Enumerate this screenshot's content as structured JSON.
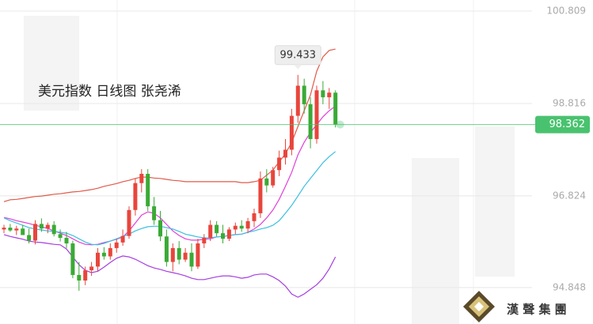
{
  "chart_data": {
    "type": "candlestick",
    "title": "美元指数 日线图 张尧浠",
    "ylim": [
      94.063,
      101.047
    ],
    "yticks": [
      94.848,
      96.824,
      98.816,
      100.809
    ],
    "grid": true,
    "up_color": "#e8453c",
    "down_color": "#3aaa35",
    "last_price_color": "#49c26f",
    "open": [
      96.1,
      96.14,
      96.08,
      96.12,
      95.98,
      95.86,
      96.22,
      96.12,
      96.2,
      96.0,
      95.92,
      95.8,
      95.12,
      95.0,
      95.22,
      95.3,
      95.6,
      95.52,
      95.7,
      95.82,
      95.96,
      96.52,
      97.1,
      97.3,
      96.6,
      96.3,
      95.95,
      95.4,
      95.7,
      95.45,
      95.6,
      95.3,
      95.8,
      95.92,
      96.2,
      96.02,
      95.9,
      96.1,
      96.18,
      96.12,
      96.28,
      96.45,
      97.2,
      97.05,
      97.38,
      97.65,
      97.82,
      98.55,
      99.2,
      98.8,
      98.05,
      99.1,
      98.95,
      99.05
    ],
    "high": [
      96.2,
      96.22,
      96.18,
      96.2,
      96.12,
      96.3,
      96.34,
      96.25,
      96.28,
      96.1,
      96.05,
      95.86,
      95.4,
      95.3,
      95.4,
      95.7,
      95.72,
      95.8,
      95.9,
      96.1,
      96.6,
      97.2,
      97.4,
      97.4,
      96.8,
      96.5,
      96.1,
      95.8,
      95.85,
      95.7,
      95.8,
      95.9,
      96.0,
      96.3,
      96.28,
      96.2,
      96.15,
      96.25,
      96.3,
      96.35,
      96.55,
      97.35,
      97.4,
      97.45,
      97.8,
      98.05,
      98.7,
      99.433,
      99.35,
      98.95,
      99.2,
      99.3,
      99.15,
      99.1
    ],
    "low": [
      96.02,
      96.05,
      95.98,
      96.0,
      95.8,
      95.78,
      96.05,
      96.02,
      95.95,
      95.84,
      95.7,
      95.05,
      94.78,
      94.9,
      95.1,
      95.2,
      95.45,
      95.45,
      95.6,
      95.75,
      95.9,
      96.4,
      96.9,
      96.5,
      96.2,
      95.85,
      95.3,
      95.2,
      95.35,
      95.4,
      95.2,
      95.25,
      95.7,
      95.85,
      95.95,
      95.8,
      95.85,
      96.0,
      96.05,
      96.02,
      96.15,
      96.35,
      96.9,
      97.0,
      97.25,
      97.5,
      97.7,
      98.4,
      98.6,
      97.85,
      97.95,
      98.8,
      98.7,
      98.3
    ],
    "close": [
      96.14,
      96.08,
      96.12,
      95.98,
      95.86,
      96.22,
      96.12,
      96.2,
      96.0,
      95.92,
      95.8,
      95.12,
      95.0,
      95.22,
      95.3,
      95.6,
      95.52,
      95.7,
      95.82,
      95.96,
      96.52,
      97.1,
      97.3,
      96.6,
      96.3,
      95.95,
      95.4,
      95.7,
      95.45,
      95.6,
      95.3,
      95.8,
      95.92,
      96.2,
      96.02,
      95.9,
      96.1,
      96.18,
      96.12,
      96.28,
      96.45,
      97.2,
      97.05,
      97.38,
      97.65,
      97.82,
      98.55,
      99.2,
      98.8,
      98.05,
      99.1,
      98.95,
      99.05,
      98.362
    ],
    "lines": [
      {
        "color": "#e05a4a",
        "values": [
          96.7,
          96.74,
          96.75,
          96.77,
          96.79,
          96.81,
          96.82,
          96.84,
          96.86,
          96.87,
          96.89,
          96.91,
          96.92,
          96.94,
          96.96,
          96.99,
          97.03,
          97.06,
          97.09,
          97.13,
          97.16,
          97.2,
          97.23,
          97.23,
          97.21,
          97.2,
          97.18,
          97.16,
          97.15,
          97.13,
          97.13,
          97.13,
          97.13,
          97.13,
          97.13,
          97.13,
          97.13,
          97.13,
          97.11,
          97.11,
          97.13,
          97.16,
          97.27,
          97.38,
          97.56,
          97.73,
          97.98,
          98.32,
          98.66,
          99.0,
          99.51,
          99.82,
          99.96,
          99.99
        ]
      },
      {
        "color": "#e040d8",
        "values": [
          96.36,
          96.33,
          96.29,
          96.26,
          96.23,
          96.19,
          96.16,
          96.12,
          96.07,
          96.02,
          95.97,
          95.9,
          95.83,
          95.78,
          95.77,
          95.78,
          95.82,
          95.85,
          95.89,
          95.94,
          96.07,
          96.24,
          96.41,
          96.48,
          96.45,
          96.35,
          96.21,
          96.07,
          95.97,
          95.9,
          95.87,
          95.87,
          95.89,
          95.9,
          95.94,
          95.95,
          95.97,
          95.99,
          96.0,
          96.04,
          96.11,
          96.21,
          96.35,
          96.52,
          96.75,
          97.03,
          97.33,
          97.71,
          97.98,
          98.19,
          98.36,
          98.53,
          98.66,
          98.76
        ]
      },
      {
        "color": "#3bbfe0",
        "values": [
          96.35,
          96.29,
          96.24,
          96.19,
          96.14,
          96.11,
          96.09,
          96.07,
          96.06,
          96.04,
          96.02,
          95.97,
          95.9,
          95.83,
          95.78,
          95.77,
          95.8,
          95.85,
          95.9,
          95.95,
          96.0,
          96.07,
          96.12,
          96.16,
          96.17,
          96.17,
          96.14,
          96.11,
          96.06,
          96.0,
          95.97,
          95.94,
          95.92,
          95.92,
          95.94,
          95.95,
          95.97,
          95.99,
          96.0,
          96.04,
          96.07,
          96.11,
          96.14,
          96.19,
          96.29,
          96.45,
          96.62,
          96.82,
          97.03,
          97.2,
          97.37,
          97.54,
          97.67,
          97.78
        ]
      },
      {
        "color": "#a53ee0",
        "values": [
          95.99,
          95.95,
          95.92,
          95.89,
          95.85,
          95.83,
          95.82,
          95.8,
          95.78,
          95.77,
          95.68,
          95.51,
          95.34,
          95.22,
          95.17,
          95.2,
          95.29,
          95.39,
          95.48,
          95.53,
          95.51,
          95.46,
          95.39,
          95.32,
          95.27,
          95.24,
          95.2,
          95.17,
          95.14,
          95.1,
          95.05,
          95.02,
          95.02,
          95.05,
          95.08,
          95.1,
          95.1,
          95.08,
          95.05,
          95.07,
          95.12,
          95.14,
          95.14,
          95.08,
          95.0,
          94.88,
          94.71,
          94.64,
          94.71,
          94.81,
          94.91,
          95.05,
          95.25,
          95.51
        ]
      }
    ]
  },
  "watermark": {
    "text": "漢 聲 集 團"
  }
}
